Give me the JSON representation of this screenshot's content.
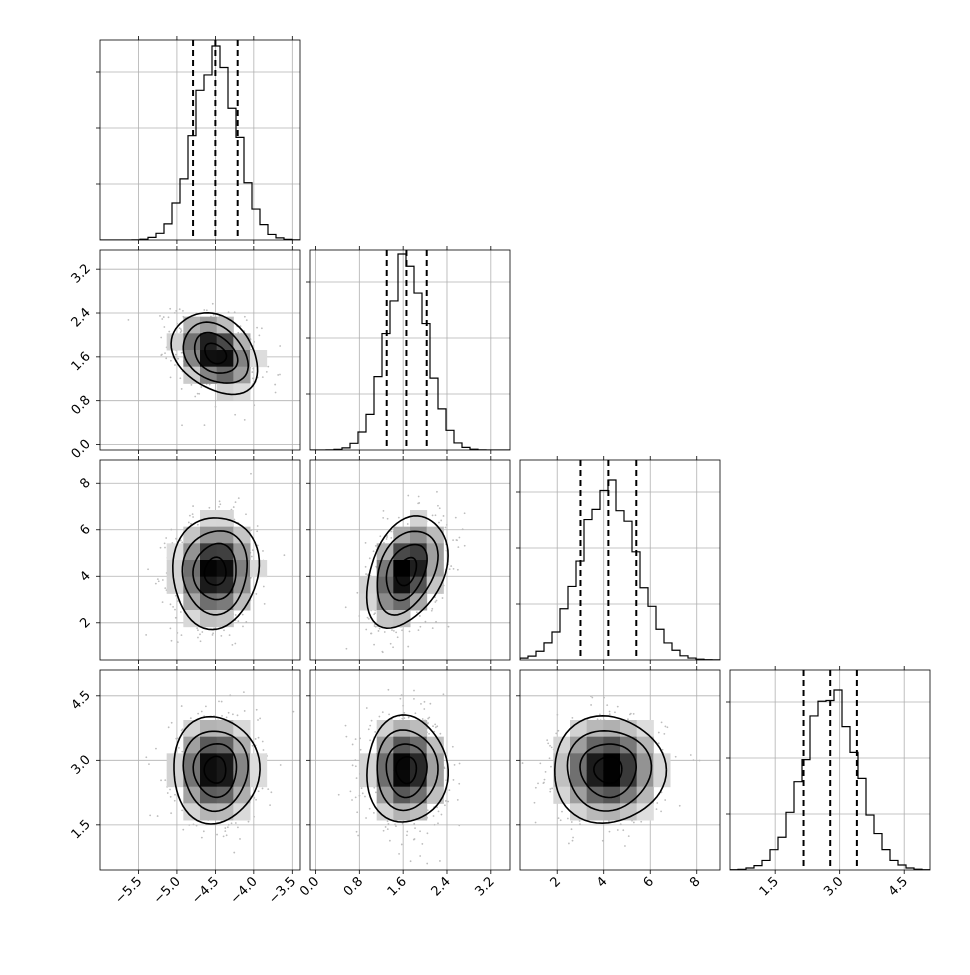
{
  "chart_data": {
    "type": "corner",
    "panels_per_side": 4,
    "quantiles": [
      0.16,
      0.5,
      0.84
    ],
    "params": [
      {
        "range": [
          -6.0,
          -3.4
        ],
        "ticks": [
          "−5.5",
          "−5.0",
          "−4.5",
          "−4.0",
          "−3.5"
        ],
        "tick_values": [
          -5.5,
          -5.0,
          -4.5,
          -4.0,
          -3.5
        ],
        "mean": -4.5,
        "sd": 0.28,
        "quantile_values": [
          -4.79,
          -4.5,
          -4.21
        ],
        "hist_max_frac": 0.97
      },
      {
        "range": [
          -0.1,
          3.55
        ],
        "ticks": [
          "0.0",
          "0.8",
          "1.6",
          "2.4",
          "3.2"
        ],
        "tick_values": [
          0.0,
          0.8,
          1.6,
          2.4,
          3.2
        ],
        "mean": 1.66,
        "sd": 0.37,
        "quantile_values": [
          1.3,
          1.66,
          2.03
        ],
        "hist_max_frac": 0.98
      },
      {
        "range": [
          0.4,
          9.0
        ],
        "ticks": [
          "2",
          "4",
          "6",
          "8"
        ],
        "tick_values": [
          2,
          4,
          6,
          8
        ],
        "mean": 4.2,
        "sd": 1.2,
        "quantile_values": [
          3.0,
          4.2,
          5.4
        ],
        "hist_max_frac": 0.9
      },
      {
        "range": [
          0.45,
          5.1
        ],
        "ticks": [
          "1.5",
          "3.0",
          "4.5"
        ],
        "tick_values": [
          1.5,
          3.0,
          4.5
        ],
        "mean": 2.78,
        "sd": 0.62,
        "quantile_values": [
          2.16,
          2.78,
          3.4
        ],
        "hist_max_frac": 0.9
      }
    ],
    "correlations": [
      [
        1,
        -0.3,
        0.05,
        0.0
      ],
      [
        -0.3,
        1,
        0.35,
        0.0
      ],
      [
        0.05,
        0.35,
        1,
        0.0
      ],
      [
        0.0,
        0.0,
        0.0,
        1
      ]
    ],
    "contour_levels_sigma": [
      0.5,
      1.0,
      1.5,
      2.0
    ],
    "grid": true,
    "colors": {
      "points": "#bdbdbd",
      "contour": "#000000",
      "hist": "#000000",
      "grid": "#b0b0b0"
    }
  }
}
